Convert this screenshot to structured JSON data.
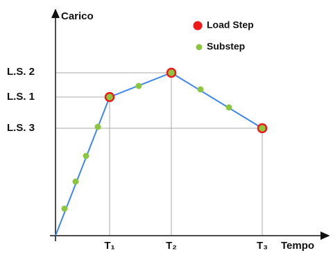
{
  "axes": {
    "y_label": "Carico",
    "x_label": "Tempo"
  },
  "legend": {
    "load_step": "Load Step",
    "substep": "Substep"
  },
  "y_ticks": [
    "L.S. 2",
    "L.S. 1",
    "L.S. 3"
  ],
  "x_ticks": [
    "T₁",
    "T₂",
    "T₃"
  ]
}
